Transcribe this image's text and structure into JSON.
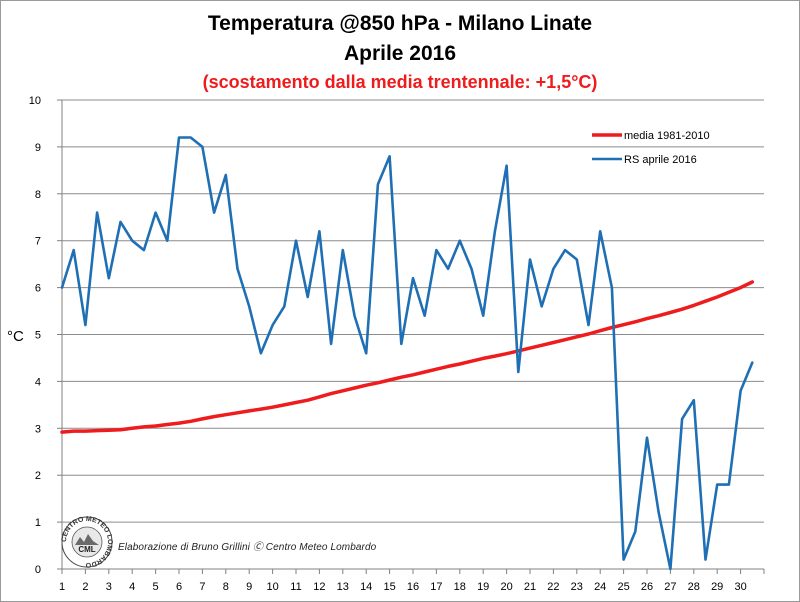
{
  "title_line1": "Temperatura @850 hPa - Milano Linate",
  "title_line2": "Aprile 2016",
  "subtitle": "(scostamento dalla media trentennale: +1,5°C)",
  "credit": "Elaborazione di Bruno Grillini  Ⓒ  Centro Meteo Lombardo",
  "logo_text": "CENTRO METEO LOMBARDO",
  "logo_abbr": "CML",
  "chart_data": {
    "type": "line",
    "title": "Temperatura @850 hPa - Milano Linate",
    "subtitle": "Aprile 2016",
    "ylabel": "°C",
    "xlabel": "",
    "xlim": [
      1,
      31
    ],
    "ylim": [
      0,
      10
    ],
    "x_ticks": [
      "1",
      "2",
      "3",
      "4",
      "5",
      "6",
      "7",
      "8",
      "9",
      "10",
      "11",
      "12",
      "13",
      "14",
      "15",
      "16",
      "17",
      "18",
      "19",
      "20",
      "21",
      "22",
      "23",
      "24",
      "25",
      "26",
      "27",
      "28",
      "29",
      "30"
    ],
    "y_ticks": [
      "0",
      "1",
      "2",
      "3",
      "4",
      "5",
      "6",
      "7",
      "8",
      "9",
      "10"
    ],
    "grid": "horizontal",
    "legend_position": "top-right",
    "series": [
      {
        "name": "media 1981-2010",
        "color": "#ee1c1c",
        "x": [
          1,
          1.5,
          2,
          2.5,
          3,
          3.5,
          4,
          4.5,
          5,
          5.5,
          6,
          6.5,
          7,
          7.5,
          8,
          8.5,
          9,
          9.5,
          10,
          10.5,
          11,
          11.5,
          12,
          12.5,
          13,
          13.5,
          14,
          14.5,
          15,
          15.5,
          16,
          16.5,
          17,
          17.5,
          18,
          18.5,
          19,
          19.5,
          20,
          20.5,
          21,
          21.5,
          22,
          22.5,
          23,
          23.5,
          24,
          24.5,
          25,
          25.5,
          26,
          26.5,
          27,
          27.5,
          28,
          28.5,
          29,
          29.5,
          30,
          30.5
        ],
        "values": [
          2.92,
          2.94,
          2.94,
          2.95,
          2.96,
          2.97,
          3.0,
          3.03,
          3.05,
          3.08,
          3.11,
          3.15,
          3.2,
          3.25,
          3.29,
          3.33,
          3.37,
          3.41,
          3.45,
          3.5,
          3.55,
          3.6,
          3.67,
          3.74,
          3.8,
          3.86,
          3.92,
          3.97,
          4.03,
          4.09,
          4.14,
          4.2,
          4.26,
          4.32,
          4.37,
          4.43,
          4.49,
          4.54,
          4.59,
          4.65,
          4.71,
          4.77,
          4.83,
          4.89,
          4.95,
          5.01,
          5.08,
          5.15,
          5.21,
          5.27,
          5.34,
          5.4,
          5.47,
          5.54,
          5.62,
          5.71,
          5.8,
          5.9,
          6.0,
          6.12
        ]
      },
      {
        "name": "RS aprile 2016",
        "color": "#1f6fb5",
        "x": [
          1,
          1.5,
          2,
          2.5,
          3,
          3.5,
          4,
          4.5,
          5,
          5.5,
          6,
          6.5,
          7,
          7.5,
          8,
          8.5,
          9,
          9.5,
          10,
          10.5,
          11,
          11.5,
          12,
          12.5,
          13,
          13.5,
          14,
          14.5,
          15,
          15.5,
          16,
          16.5,
          17,
          17.5,
          18,
          18.5,
          19,
          19.5,
          20,
          20.5,
          21,
          21.5,
          22,
          22.5,
          23,
          23.5,
          24,
          24.5,
          25,
          25.5,
          26,
          26.5,
          27,
          27.5,
          28,
          28.5,
          29,
          29.5,
          30,
          30.5
        ],
        "values": [
          6.0,
          6.8,
          5.2,
          7.6,
          6.2,
          7.4,
          7.0,
          6.8,
          7.6,
          7.0,
          9.2,
          9.2,
          9.0,
          7.6,
          8.4,
          6.4,
          5.6,
          4.6,
          5.2,
          5.6,
          7.0,
          5.8,
          7.2,
          4.8,
          6.8,
          5.4,
          4.6,
          8.2,
          8.8,
          4.8,
          6.2,
          5.4,
          6.8,
          6.4,
          7.0,
          6.4,
          5.4,
          7.2,
          8.6,
          4.2,
          6.6,
          5.6,
          6.4,
          6.8,
          6.6,
          5.2,
          7.2,
          6.0,
          0.2,
          0.8,
          2.8,
          1.2,
          0.0,
          3.2,
          3.6,
          0.2,
          1.8,
          1.8,
          3.8,
          4.4
        ]
      }
    ]
  },
  "colors": {
    "mean": "#ee1c1c",
    "sounding": "#1f6fb5",
    "grid": "#8c8c8c",
    "subtitle": "#ee1c1c"
  }
}
